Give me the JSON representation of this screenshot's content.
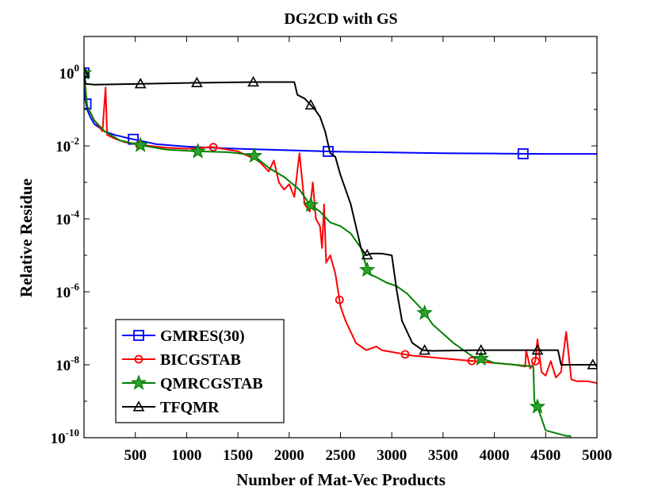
{
  "chart_data": {
    "type": "line",
    "title": "DG2CD with GS",
    "xlabel": "Number of Mat-Vec Products",
    "ylabel": "Relative Residue",
    "xlim": [
      0,
      5000
    ],
    "ylim_exponent": [
      -10,
      1
    ],
    "yscale": "log",
    "x_ticks": [
      500,
      1000,
      1500,
      2000,
      2500,
      3000,
      3500,
      4000,
      4500,
      5000
    ],
    "x_tick_labels": [
      "500",
      "1000",
      "1500",
      "2000",
      "2500",
      "3000",
      "3500",
      "4000",
      "4500",
      "5000"
    ],
    "y_ticks": [
      {
        "base": "10",
        "exp": "-10",
        "value": -10
      },
      {
        "base": "10",
        "exp": "-8",
        "value": -8
      },
      {
        "base": "10",
        "exp": "-6",
        "value": -6
      },
      {
        "base": "10",
        "exp": "-4",
        "value": -4
      },
      {
        "base": "10",
        "exp": "-2",
        "value": -2
      },
      {
        "base": "10",
        "exp": "0",
        "value": 0
      }
    ],
    "legend_position": "bottom-left",
    "series": [
      {
        "name": "GMRES(30)",
        "color": "#0000ff",
        "marker": "square",
        "points": [
          [
            0,
            0
          ],
          [
            10,
            -0.7
          ],
          [
            30,
            -1.0
          ],
          [
            60,
            -1.2
          ],
          [
            100,
            -1.4
          ],
          [
            200,
            -1.6
          ],
          [
            300,
            -1.7
          ],
          [
            450,
            -1.8
          ],
          [
            700,
            -1.95
          ],
          [
            1000,
            -2.02
          ],
          [
            1500,
            -2.08
          ],
          [
            2000,
            -2.12
          ],
          [
            2500,
            -2.16
          ],
          [
            3000,
            -2.18
          ],
          [
            3500,
            -2.2
          ],
          [
            4000,
            -2.21
          ],
          [
            4500,
            -2.22
          ],
          [
            5000,
            -2.22
          ]
        ],
        "markers_x": [
          0,
          20,
          480,
          2380,
          4280
        ]
      },
      {
        "name": "BICGSTAB",
        "color": "#ff0000",
        "marker": "circle",
        "points": [
          [
            0,
            0
          ],
          [
            30,
            -0.9
          ],
          [
            100,
            -1.3
          ],
          [
            180,
            -1.6
          ],
          [
            210,
            -0.4
          ],
          [
            225,
            -1.7
          ],
          [
            300,
            -1.8
          ],
          [
            400,
            -1.9
          ],
          [
            550,
            -1.97
          ],
          [
            800,
            -2.05
          ],
          [
            1000,
            -2.08
          ],
          [
            1250,
            -2.03
          ],
          [
            1500,
            -2.15
          ],
          [
            1700,
            -2.4
          ],
          [
            1800,
            -2.7
          ],
          [
            1850,
            -2.4
          ],
          [
            1900,
            -3.0
          ],
          [
            1950,
            -3.2
          ],
          [
            2000,
            -3.05
          ],
          [
            2050,
            -3.4
          ],
          [
            2100,
            -2.2
          ],
          [
            2150,
            -3.6
          ],
          [
            2200,
            -3.8
          ],
          [
            2230,
            -3.0
          ],
          [
            2260,
            -4.0
          ],
          [
            2300,
            -4.2
          ],
          [
            2320,
            -4.8
          ],
          [
            2340,
            -3.6
          ],
          [
            2360,
            -5.2
          ],
          [
            2400,
            -5.0
          ],
          [
            2450,
            -5.5
          ],
          [
            2500,
            -6.4
          ],
          [
            2550,
            -6.8
          ],
          [
            2600,
            -7.1
          ],
          [
            2650,
            -7.4
          ],
          [
            2700,
            -7.5
          ],
          [
            2750,
            -7.6
          ],
          [
            2800,
            -7.55
          ],
          [
            2850,
            -7.5
          ],
          [
            2900,
            -7.6
          ],
          [
            3000,
            -7.65
          ],
          [
            3100,
            -7.7
          ],
          [
            3200,
            -7.75
          ],
          [
            3400,
            -7.8
          ],
          [
            3600,
            -7.85
          ],
          [
            3800,
            -7.9
          ],
          [
            4000,
            -7.95
          ],
          [
            4200,
            -8.0
          ],
          [
            4300,
            -8.05
          ],
          [
            4310,
            -7.6
          ],
          [
            4350,
            -8.1
          ],
          [
            4400,
            -7.9
          ],
          [
            4420,
            -7.3
          ],
          [
            4460,
            -8.2
          ],
          [
            4500,
            -8.3
          ],
          [
            4550,
            -7.9
          ],
          [
            4600,
            -8.35
          ],
          [
            4650,
            -8.2
          ],
          [
            4700,
            -7.1
          ],
          [
            4750,
            -8.4
          ],
          [
            4800,
            -8.45
          ],
          [
            4900,
            -8.45
          ],
          [
            5000,
            -8.5
          ]
        ],
        "markers_x": [
          0,
          540,
          1260,
          2490,
          3130,
          3780,
          4400
        ]
      },
      {
        "name": "QMRCGSTAB",
        "color": "#008000",
        "marker": "star",
        "points": [
          [
            0,
            0
          ],
          [
            30,
            -0.9
          ],
          [
            100,
            -1.3
          ],
          [
            200,
            -1.6
          ],
          [
            350,
            -1.85
          ],
          [
            550,
            -1.98
          ],
          [
            800,
            -2.1
          ],
          [
            1100,
            -2.15
          ],
          [
            1400,
            -2.17
          ],
          [
            1650,
            -2.25
          ],
          [
            1800,
            -2.6
          ],
          [
            1950,
            -2.85
          ],
          [
            2100,
            -3.2
          ],
          [
            2200,
            -3.6
          ],
          [
            2300,
            -3.8
          ],
          [
            2400,
            -4.1
          ],
          [
            2500,
            -4.2
          ],
          [
            2600,
            -4.4
          ],
          [
            2700,
            -4.8
          ],
          [
            2770,
            -5.5
          ],
          [
            2850,
            -5.6
          ],
          [
            2950,
            -5.75
          ],
          [
            3050,
            -5.85
          ],
          [
            3150,
            -6.05
          ],
          [
            3300,
            -6.5
          ],
          [
            3400,
            -6.9
          ],
          [
            3600,
            -7.4
          ],
          [
            3800,
            -7.8
          ],
          [
            3900,
            -7.85
          ],
          [
            4000,
            -7.95
          ],
          [
            4200,
            -8.0
          ],
          [
            4380,
            -8.05
          ],
          [
            4390,
            -9.0
          ],
          [
            4420,
            -9.15
          ],
          [
            4500,
            -9.8
          ],
          [
            4700,
            -9.95
          ],
          [
            4740,
            -9.95
          ],
          [
            4750,
            -10.5
          ]
        ],
        "markers_x": [
          0,
          550,
          1110,
          1660,
          2210,
          2760,
          3320,
          3870,
          4420
        ]
      },
      {
        "name": "TFQMR",
        "color": "#000000",
        "marker": "triangle",
        "points": [
          [
            0,
            0
          ],
          [
            15,
            -0.3
          ],
          [
            100,
            -0.32
          ],
          [
            550,
            -0.3
          ],
          [
            1100,
            -0.27
          ],
          [
            1650,
            -0.25
          ],
          [
            2050,
            -0.25
          ],
          [
            2080,
            -0.6
          ],
          [
            2150,
            -0.7
          ],
          [
            2200,
            -0.85
          ],
          [
            2250,
            -1.0
          ],
          [
            2300,
            -1.2
          ],
          [
            2350,
            -1.6
          ],
          [
            2400,
            -2.2
          ],
          [
            2450,
            -2.3
          ],
          [
            2500,
            -2.8
          ],
          [
            2550,
            -3.2
          ],
          [
            2600,
            -3.6
          ],
          [
            2650,
            -4.2
          ],
          [
            2700,
            -4.8
          ],
          [
            2750,
            -5.0
          ],
          [
            2800,
            -4.95
          ],
          [
            2900,
            -4.95
          ],
          [
            3000,
            -5.0
          ],
          [
            3050,
            -6.0
          ],
          [
            3100,
            -6.8
          ],
          [
            3200,
            -7.4
          ],
          [
            3300,
            -7.6
          ],
          [
            3400,
            -7.62
          ],
          [
            3800,
            -7.6
          ],
          [
            4400,
            -7.6
          ],
          [
            4620,
            -7.6
          ],
          [
            4650,
            -8.0
          ],
          [
            5000,
            -8.0
          ]
        ],
        "markers_x": [
          0,
          550,
          1100,
          1650,
          2210,
          2760,
          3320,
          3870,
          4420,
          4960
        ]
      }
    ]
  }
}
